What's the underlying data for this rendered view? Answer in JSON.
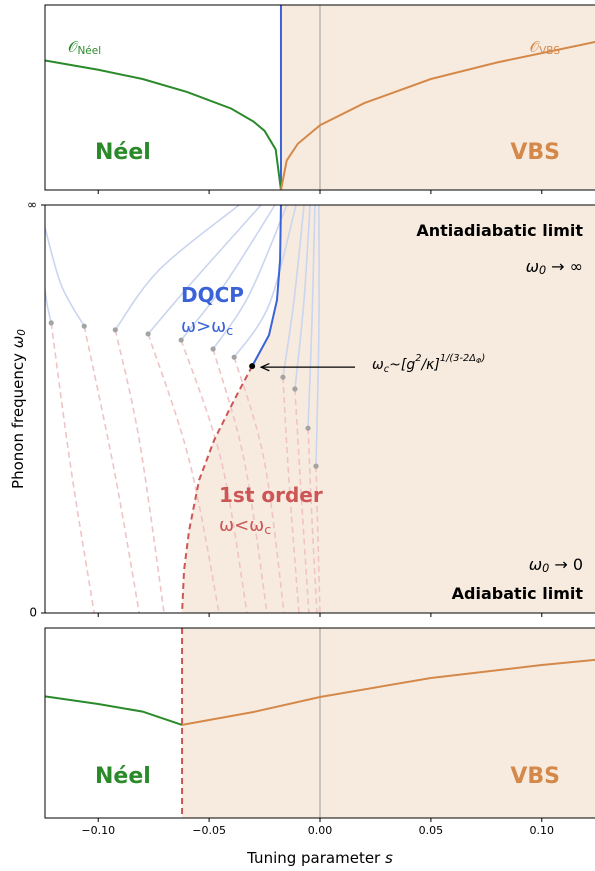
{
  "chart_data": [
    {
      "type": "line",
      "xlim": [
        -0.124,
        0.124
      ],
      "ylim": [
        0,
        1
      ],
      "ref_line": 0,
      "transition_s": -0.0176,
      "transition_color": "#3b63d8",
      "shade_color": "#f7ebe0",
      "series": [
        {
          "color": "#2a8a2a",
          "x": [
            -0.124,
            -0.1,
            -0.08,
            -0.06,
            -0.04,
            -0.03,
            -0.025,
            -0.02,
            -0.0176
          ],
          "values": [
            0.7,
            0.65,
            0.6,
            0.53,
            0.44,
            0.37,
            0.32,
            0.22,
            0
          ]
        },
        {
          "color": "#d4894a",
          "x": [
            -0.0176,
            -0.015,
            -0.01,
            0,
            0.02,
            0.05,
            0.08,
            0.1,
            0.124
          ],
          "values": [
            0,
            0.16,
            0.25,
            0.35,
            0.47,
            0.6,
            0.69,
            0.74,
            0.8
          ]
        }
      ],
      "annotations": [
        {
          "parts": [
            {
              "text": "𝒪"
            },
            {
              "text": "Néel",
              "shift": "sub"
            }
          ],
          "color": "#2a8a2a"
        },
        {
          "parts": [
            {
              "text": "𝒪"
            },
            {
              "text": "VBS",
              "shift": "sub"
            }
          ],
          "color": "#d4894a"
        },
        {
          "parts": [
            {
              "text": "Néel"
            }
          ],
          "color": "#2a8a2a",
          "bold": true
        },
        {
          "parts": [
            {
              "text": "VBS"
            }
          ],
          "color": "#d4894a",
          "bold": true
        }
      ]
    },
    {
      "type": "line",
      "xlim": [
        -0.124,
        0.124
      ],
      "ylim": [
        0,
        1
      ],
      "yticks": [
        {
          "value": 1,
          "label": "∞"
        },
        0
      ],
      "ylabel": [
        {
          "text": "Phonon frequency "
        },
        {
          "text": "ω",
          "italic": true
        },
        {
          "text": "0",
          "shift": "sub",
          "italic": true
        }
      ],
      "shade_color": "#f7ebe0",
      "series": [
        {
          "color": "#3b63d8",
          "x": [
            -0.0176,
            -0.018,
            -0.0194,
            -0.023,
            -0.0306
          ],
          "values": [
            1,
            0.865,
            0.767,
            0.681,
            0.605
          ]
        },
        {
          "color": "#cc5555",
          "dashed": true,
          "x": [
            -0.0306,
            -0.0387,
            -0.0477,
            -0.0545,
            -0.059,
            -0.0613,
            -0.0622
          ],
          "values": [
            0.605,
            0.522,
            0.424,
            0.326,
            0.203,
            0.105,
            0
          ]
        }
      ],
      "critical_point": {
        "x": -0.0306,
        "y": 0.605
      },
      "faint_colors": [
        "#cad5ef",
        "#f0c4c4"
      ],
      "dot_color": "#a3a3a3",
      "faint_curves": [
        {
          "x": [
            -0.1243,
            -0.123,
            -0.1212,
            -0.1122,
            -0.1018
          ],
          "y": [
            0.804,
            0.755,
            0.711,
            0.35,
            0
          ]
        },
        {
          "x": [
            -0.1243,
            -0.1167,
            -0.1063,
            -0.0928,
            -0.0815
          ],
          "y": [
            0.951,
            0.804,
            0.703,
            0.35,
            0
          ]
        },
        {
          "x": [
            -0.0365,
            -0.0725,
            -0.0923,
            -0.0815,
            -0.0703
          ],
          "y": [
            1,
            0.841,
            0.694,
            0.424,
            0
          ]
        },
        {
          "x": [
            -0.0266,
            -0.0568,
            -0.0775,
            -0.059,
            -0.0455
          ],
          "y": [
            1,
            0.816,
            0.684,
            0.375,
            0
          ]
        },
        {
          "x": [
            -0.0203,
            -0.0432,
            -0.0626,
            -0.0446,
            -0.0329
          ],
          "y": [
            1,
            0.804,
            0.669,
            0.375,
            0
          ]
        },
        {
          "x": [
            -0.0149,
            -0.032,
            -0.0482,
            -0.0342,
            -0.0239
          ],
          "y": [
            1,
            0.779,
            0.647,
            0.375,
            0
          ]
        },
        {
          "x": [
            -0.0108,
            -0.023,
            -0.0387,
            -0.0252,
            -0.0162
          ],
          "y": [
            1,
            0.755,
            0.627,
            0.375,
            0
          ]
        },
        {
          "x": [
            -0.0072,
            -0.0117,
            -0.0167,
            -0.014,
            -0.0095
          ],
          "y": [
            1,
            0.767,
            0.578,
            0.326,
            0
          ]
        },
        {
          "x": [
            -0.0045,
            -0.0072,
            -0.0113,
            -0.0086,
            -0.005
          ],
          "y": [
            1,
            0.767,
            0.549,
            0.301,
            0
          ]
        },
        {
          "x": [
            -0.0023,
            -0.0036,
            -0.0054,
            -0.0036,
            -0.0014
          ],
          "y": [
            1,
            0.718,
            0.453,
            0.228,
            0
          ]
        },
        {
          "x": [
            -0.0005,
            -0.0005,
            -0.0018,
            -0.0009,
            0
          ],
          "y": [
            1,
            0.694,
            0.36,
            0.179,
            0
          ]
        }
      ],
      "annotations": [
        {
          "parts": [
            {
              "text": "Antiadiabatic limit"
            }
          ],
          "color": "#000000",
          "bold": true
        },
        {
          "parts": [
            {
              "text": "ω",
              "italic": true
            },
            {
              "text": "0",
              "shift": "sub",
              "italic": true
            },
            {
              "text": " → ∞"
            }
          ],
          "color": "#000000"
        },
        {
          "parts": [
            {
              "text": "DQCP"
            }
          ],
          "color": "#3b63d8",
          "bold": true
        },
        {
          "parts": [
            {
              "text": "ω>ω"
            },
            {
              "text": "c",
              "shift": "sub"
            }
          ],
          "color": "#3b63d8"
        },
        {
          "parts": [
            {
              "text": "ω",
              "italic": true
            },
            {
              "text": "c",
              "shift": "sub",
              "italic": true
            },
            {
              "text": "~[g",
              "italic": true
            },
            {
              "text": "2",
              "shift": "sup",
              "italic": true
            },
            {
              "text": "/κ]",
              "italic": true
            },
            {
              "text": "1/(3-2Δ",
              "shift": "sup",
              "italic": true
            },
            {
              "text": "Φ",
              "shift": "supsub",
              "italic": true
            },
            {
              "text": ")",
              "shift": "sup",
              "italic": true
            }
          ],
          "color": "#000000"
        },
        {
          "parts": [
            {
              "text": "1st order"
            }
          ],
          "color": "#cc5555",
          "bold": true
        },
        {
          "parts": [
            {
              "text": "ω<ω"
            },
            {
              "text": "c",
              "shift": "sub"
            }
          ],
          "color": "#cc5555"
        },
        {
          "parts": [
            {
              "text": "ω",
              "italic": true
            },
            {
              "text": "0",
              "shift": "sub",
              "italic": true
            },
            {
              "text": " → 0"
            }
          ],
          "color": "#000000"
        },
        {
          "parts": [
            {
              "text": "Adiabatic limit"
            }
          ],
          "color": "#000000",
          "bold": true
        }
      ]
    },
    {
      "type": "line",
      "xlim": [
        -0.124,
        0.124
      ],
      "ylim": [
        0,
        1
      ],
      "ref_line": 0,
      "transition_s": -0.0622,
      "transition_color": "#cc5555",
      "shade_color": "#f7ebe0",
      "xticks": [
        {
          "value": -0.1,
          "label": "−0.10"
        },
        {
          "value": -0.05,
          "label": "−0.05"
        },
        {
          "value": 0,
          "label": "0.00"
        },
        {
          "value": 0.05,
          "label": "0.05"
        },
        {
          "value": 0.1,
          "label": "0.10"
        }
      ],
      "xlabel": [
        {
          "text": "Tuning parameter "
        },
        {
          "text": "s",
          "italic": true
        }
      ],
      "series": [
        {
          "color": "#2a8a2a",
          "x": [
            -0.124,
            -0.1,
            -0.08,
            -0.0622
          ],
          "values": [
            0.64,
            0.6,
            0.56,
            0.49
          ]
        },
        {
          "color": "#d4894a",
          "x": [
            -0.0622,
            -0.03,
            0,
            0.05,
            0.1,
            0.124
          ],
          "values": [
            0.49,
            0.558,
            0.637,
            0.737,
            0.805,
            0.832
          ]
        }
      ],
      "annotations": [
        {
          "parts": [
            {
              "text": "Néel"
            }
          ],
          "color": "#2a8a2a",
          "bold": true
        },
        {
          "parts": [
            {
              "text": "VBS"
            }
          ],
          "color": "#d4894a",
          "bold": true
        }
      ]
    }
  ]
}
